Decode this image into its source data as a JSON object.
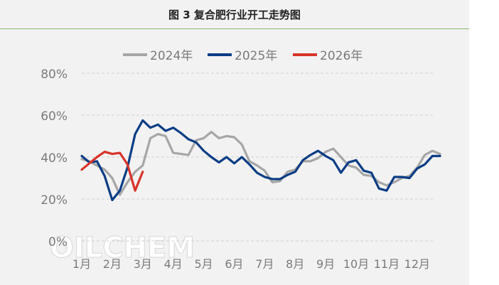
{
  "chart_data": {
    "type": "line",
    "title": "图 3 复合肥行业开工走势图",
    "xlabel": "",
    "ylabel": "",
    "x_tick_labels": [
      "1月",
      "2月",
      "3月",
      "4月",
      "5月",
      "6月",
      "7月",
      "8月",
      "9月",
      "10月",
      "11月",
      "12月"
    ],
    "y_tick_labels": [
      "0%",
      "20%",
      "40%",
      "60%",
      "80%"
    ],
    "ylim": [
      0,
      80
    ],
    "grid": "horizontal dashed",
    "legend_position": "top",
    "watermark_text": "OILCHEM",
    "series": [
      {
        "name": "2024年",
        "color": "#a6a6a6",
        "x": [
          1,
          1.25,
          1.5,
          1.75,
          2,
          2.25,
          2.5,
          2.75,
          3,
          3.25,
          3.5,
          3.75,
          4,
          4.25,
          4.5,
          4.75,
          5,
          5.25,
          5.5,
          5.75,
          6,
          6.25,
          6.5,
          6.75,
          7,
          7.25,
          7.5,
          7.75,
          8,
          8.25,
          8.5,
          8.75,
          9,
          9.25,
          9.5,
          9.75,
          10,
          10.25,
          10.5,
          10.75,
          11,
          11.25,
          11.5,
          11.75,
          12,
          12.25,
          12.5,
          12.75
        ],
        "values": [
          39,
          38,
          36,
          34,
          30,
          22,
          28,
          33,
          36,
          49,
          51,
          50,
          42,
          41.5,
          41,
          48,
          49,
          52,
          49,
          50,
          49.5,
          46,
          38,
          36,
          33.5,
          28,
          28.5,
          33,
          34,
          38,
          38,
          39.5,
          42.5,
          44,
          40,
          36,
          35,
          31.5,
          31,
          28,
          26.5,
          28,
          30,
          31,
          35,
          41,
          43,
          41.5
        ]
      },
      {
        "name": "2025年",
        "color": "#0b3d85",
        "x": [
          1,
          1.25,
          1.5,
          1.75,
          2,
          2.25,
          2.5,
          2.75,
          3,
          3.25,
          3.5,
          3.75,
          4,
          4.25,
          4.5,
          4.75,
          5,
          5.25,
          5.5,
          5.75,
          6,
          6.25,
          6.5,
          6.75,
          7,
          7.25,
          7.5,
          7.75,
          8,
          8.25,
          8.5,
          8.75,
          9,
          9.25,
          9.5,
          9.75,
          10,
          10.25,
          10.5,
          10.75,
          11,
          11.25,
          11.5,
          11.75,
          12,
          12.25,
          12.5,
          12.75
        ],
        "values": [
          40.5,
          37.5,
          38,
          31,
          19.5,
          24,
          35,
          51,
          57.5,
          54,
          55.5,
          52.5,
          54,
          51.5,
          48.5,
          47,
          43,
          40,
          37.5,
          40,
          37,
          40,
          36.5,
          32.5,
          30.5,
          29.5,
          29.5,
          31.5,
          33,
          38.5,
          41,
          43,
          40.5,
          38.5,
          32.5,
          37.5,
          38.5,
          33.5,
          32.5,
          25,
          24,
          30.5,
          30.5,
          30,
          34.5,
          36.5,
          40.5,
          40.5
        ]
      },
      {
        "name": "2026年",
        "color": "#d7342a",
        "x": [
          1,
          1.25,
          1.5,
          1.75,
          2,
          2.25,
          2.5,
          2.75,
          3
        ],
        "values": [
          34,
          37,
          40,
          42.5,
          41.5,
          42,
          36.5,
          24,
          33
        ]
      }
    ]
  }
}
